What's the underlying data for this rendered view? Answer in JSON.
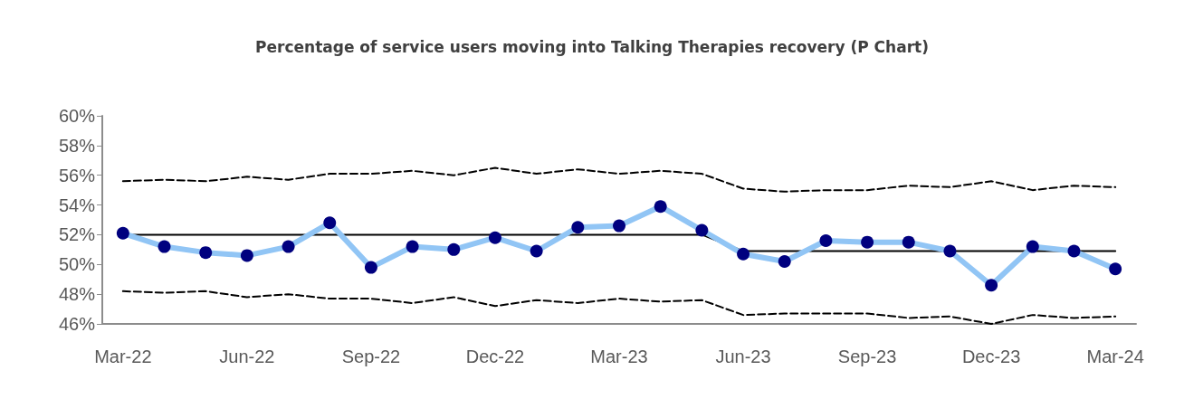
{
  "chart_data": {
    "type": "line",
    "title": "Percentage of service users moving into Talking Therapies recovery (P Chart)",
    "categories": [
      "Mar-22",
      null,
      null,
      "Jun-22",
      null,
      null,
      "Sep-22",
      null,
      null,
      "Dec-22",
      null,
      null,
      "Mar-23",
      null,
      null,
      "Jun-23",
      null,
      null,
      "Sep-23",
      null,
      null,
      "Dec-23",
      null,
      null,
      "Mar-24"
    ],
    "ylim": [
      46,
      60
    ],
    "yticks": [
      {
        "value": 46,
        "label": "46%"
      },
      {
        "value": 48,
        "label": "48%"
      },
      {
        "value": 50,
        "label": "50%"
      },
      {
        "value": 52,
        "label": "52%"
      },
      {
        "value": 54,
        "label": "54%"
      },
      {
        "value": 56,
        "label": "56%"
      },
      {
        "value": 58,
        "label": "58%"
      },
      {
        "value": 60,
        "label": "60%"
      }
    ],
    "series": [
      {
        "color": "#000000",
        "line_style": "dashed",
        "marker": "none",
        "values": [
          55.6,
          55.7,
          55.6,
          55.9,
          55.7,
          56.1,
          56.1,
          56.3,
          56.0,
          56.5,
          56.1,
          56.4,
          56.1,
          56.3,
          56.1,
          55.1,
          54.9,
          55.0,
          55.0,
          55.3,
          55.2,
          55.6,
          55.0,
          55.3,
          55.2
        ]
      },
      {
        "color": "#000000",
        "line_style": "dashed",
        "marker": "none",
        "values": [
          48.2,
          48.1,
          48.2,
          47.8,
          48.0,
          47.7,
          47.7,
          47.4,
          47.8,
          47.2,
          47.6,
          47.4,
          47.7,
          47.5,
          47.6,
          46.6,
          46.7,
          46.7,
          46.7,
          46.4,
          46.5,
          46.0,
          46.6,
          46.4,
          46.5
        ]
      },
      {
        "color": "#000000",
        "line_style": "solid",
        "marker": "none",
        "values": [
          52.0,
          52.0,
          52.0,
          52.0,
          52.0,
          52.0,
          52.0,
          52.0,
          52.0,
          52.0,
          52.0,
          52.0,
          52.0,
          52.0,
          52.0,
          50.9,
          50.9,
          50.9,
          50.9,
          50.9,
          50.9,
          50.9,
          50.9,
          50.9,
          50.9
        ]
      },
      {
        "color": "#91c5f5",
        "line_style": "solid",
        "marker": "circle",
        "colors": [
          "#00007f",
          "#00007f",
          "#00007f",
          "#00007f",
          "#00007f",
          "#00007f",
          "#00007f",
          "#00007f",
          "#00007f",
          "#00007f",
          "#00007f",
          "#00007f",
          "#00007f",
          "#00007f",
          "#00007f",
          "#00007f",
          "#00007f",
          "#00007f",
          "#00007f",
          "#00007f",
          "#00007f",
          "#00007f",
          "#00007f",
          "#00007f",
          "#00007f"
        ],
        "values": [
          52.1,
          51.2,
          50.8,
          50.6,
          51.2,
          52.8,
          49.8,
          51.2,
          51.0,
          51.8,
          50.9,
          52.5,
          52.6,
          53.9,
          52.3,
          50.7,
          50.2,
          51.6,
          51.5,
          51.5,
          50.9,
          48.6,
          51.2,
          50.9,
          49.7
        ]
      }
    ]
  }
}
